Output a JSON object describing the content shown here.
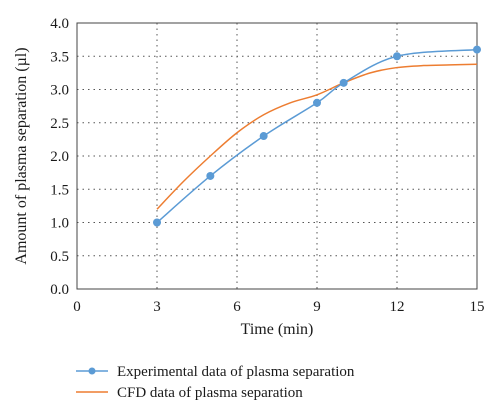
{
  "chart_data": {
    "type": "line",
    "xlabel": "Time (min)",
    "ylabel": "Amount of plasma separation (µl)",
    "xlim": [
      0,
      15
    ],
    "ylim": [
      0,
      4
    ],
    "xticks": [
      0,
      3,
      6,
      9,
      12,
      15
    ],
    "yticks": [
      0.0,
      0.5,
      1.0,
      1.5,
      2.0,
      2.5,
      3.0,
      3.5,
      4.0
    ],
    "xtick_labels": [
      "0",
      "3",
      "6",
      "9",
      "12",
      "15"
    ],
    "ytick_labels": [
      "0.0",
      "0.5",
      "1.0",
      "1.5",
      "2.0",
      "2.5",
      "3.0",
      "3.5",
      "4.0"
    ],
    "grid": true,
    "legend_position": "below",
    "series": [
      {
        "name": "Experimental data of plasma separation",
        "color": "#5b9bd5",
        "marker": "circle",
        "x": [
          3,
          5,
          7,
          9,
          10,
          12,
          15
        ],
        "y": [
          1.0,
          1.7,
          2.3,
          2.8,
          3.1,
          3.5,
          3.6
        ]
      },
      {
        "name": "CFD data of plasma separation",
        "color": "#ed7d31",
        "marker": "none",
        "x": [
          3,
          4,
          5,
          6,
          7,
          8,
          9,
          10,
          11,
          12,
          13,
          14,
          15
        ],
        "y": [
          1.2,
          1.62,
          2.0,
          2.35,
          2.62,
          2.8,
          2.92,
          3.1,
          3.25,
          3.33,
          3.36,
          3.37,
          3.38
        ]
      }
    ]
  }
}
